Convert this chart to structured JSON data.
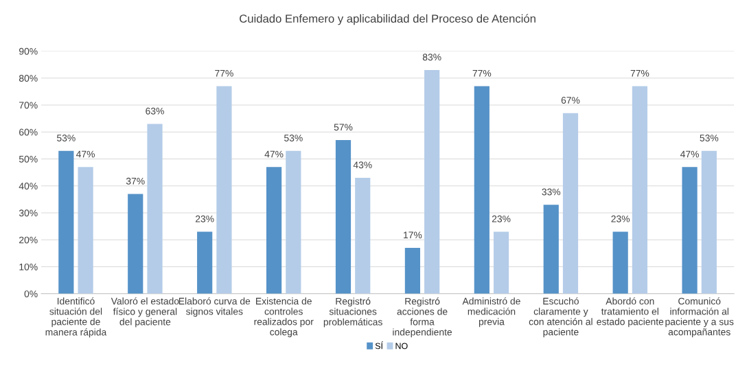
{
  "chart_data": {
    "type": "bar",
    "title": "Cuidado Enfemero y aplicabilidad del Proceso de Atención",
    "categories": [
      "Identificó\nsituación del\npaciente de\nmanera rápida",
      "Valoró el estado\nfísico y general\ndel paciente",
      "Elaboró curva de\nsignos vitales",
      "Existencia de\ncontroles\nrealizados por\ncolega",
      "Registró\nsituaciones\nproblemáticas",
      "Registró\nacciones de\nforma\nindependiente",
      "Administró de\nmedicación\nprevia",
      "Escuchó\nclaramente y\ncon atención al\npaciente",
      "Abordó con\ntratamiento el\nestado paciente",
      "Comunicó\ninformación al\npaciente y a sus\nacompañantes"
    ],
    "series": [
      {
        "name": "SÍ",
        "color": "#5592c8",
        "values": [
          53,
          37,
          23,
          47,
          57,
          17,
          77,
          33,
          23,
          47
        ],
        "value_labels": [
          "53%",
          "37%",
          "23%",
          "47%",
          "57%",
          "17%",
          "77%",
          "33%",
          "23%",
          "47%"
        ]
      },
      {
        "name": "NO",
        "color": "#b4cce8",
        "values": [
          47,
          63,
          77,
          53,
          43,
          83,
          23,
          67,
          77,
          53
        ],
        "value_labels": [
          "47%",
          "63%",
          "77%",
          "53%",
          "43%",
          "83%",
          "23%",
          "67%",
          "77%",
          "53%"
        ]
      }
    ],
    "ylim": [
      0,
      90
    ],
    "yticks": [
      {
        "value": 0,
        "label": "0%"
      },
      {
        "value": 10,
        "label": "10%"
      },
      {
        "value": 20,
        "label": "20%"
      },
      {
        "value": 30,
        "label": "30%"
      },
      {
        "value": 40,
        "label": "40%"
      },
      {
        "value": 50,
        "label": "50%"
      },
      {
        "value": 60,
        "label": "60%"
      },
      {
        "value": 70,
        "label": "70%"
      },
      {
        "value": 80,
        "label": "80%"
      },
      {
        "value": 90,
        "label": "90%"
      }
    ],
    "grid": "y",
    "legend": "bottom"
  }
}
